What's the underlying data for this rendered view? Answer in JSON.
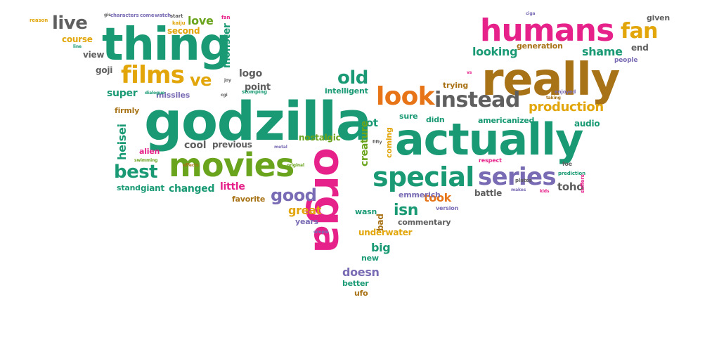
{
  "palette": {
    "green": "#1a9a74",
    "pink": "#e6218a",
    "brown": "#a87216",
    "olive": "#6aa31c",
    "orange": "#e87418",
    "purple": "#7a6cb4",
    "gold": "#e2a60a",
    "gray": "#5f5f5f"
  },
  "words": [
    "godzilla",
    "actually",
    "really",
    "thing",
    "movies",
    "orga",
    "humans",
    "look",
    "special",
    "series",
    "instead",
    "films",
    "fan",
    "ve",
    "best",
    "old",
    "good",
    "production",
    "shame",
    "looking",
    "generation",
    "live",
    "love",
    "second",
    "course",
    "view",
    "goji",
    "super",
    "missiles",
    "firmly",
    "heisei",
    "alien",
    "monster",
    "logo",
    "point",
    "intelligent",
    "lot",
    "creature",
    "nostalgic",
    "coming",
    "sure",
    "didn",
    "americanized",
    "audio",
    "trying",
    "toho",
    "battle",
    "took",
    "emmerich",
    "isn",
    "great",
    "years",
    "wasn",
    "bad",
    "commentary",
    "underwater",
    "big",
    "new",
    "doesn",
    "better",
    "ufo",
    "changed",
    "giant",
    "stand",
    "little",
    "favorite",
    "cool",
    "previous",
    "respect",
    "plates",
    "prediction",
    "makes",
    "kids",
    "suffers",
    "end",
    "people",
    "given",
    "ciga",
    "enjoyed",
    "taking",
    "vs",
    "version",
    "simple",
    "metal",
    "original",
    "swimming",
    "effects",
    "stomping",
    "joy",
    "cgi",
    "dialogue",
    "reason",
    "gis",
    "characters",
    "come",
    "watch",
    "start",
    "kaiju",
    "line",
    "fan",
    "fifty",
    "foe"
  ]
}
